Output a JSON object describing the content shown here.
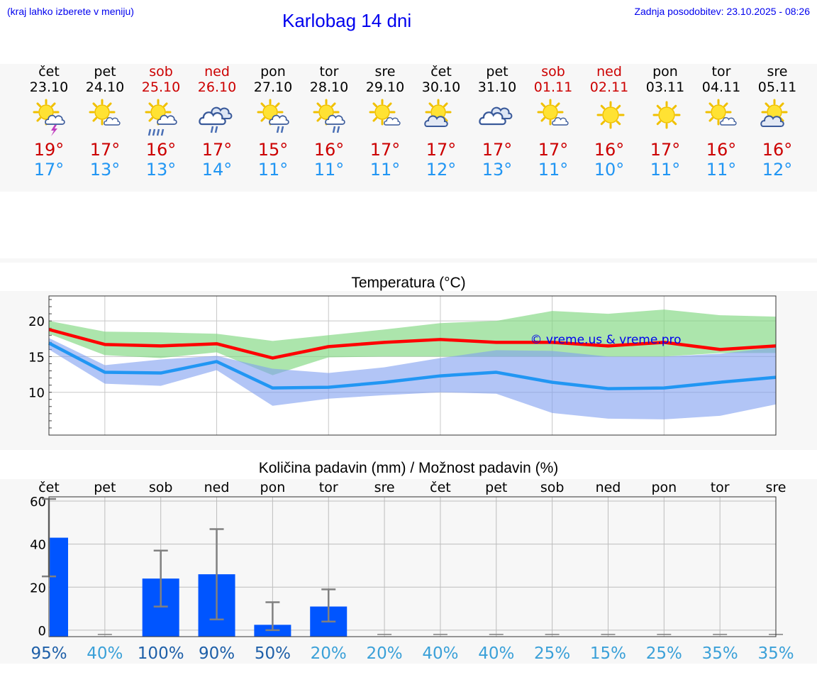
{
  "header": {
    "menu_hint": "(kraj lahko izberete v meniju)",
    "title": "Karlobag 14 dni",
    "last_update": "Zadnja posodobitev: 23.10.2025 - 08:26"
  },
  "colors": {
    "weekday": "#000000",
    "weekend": "#cc0000",
    "max_temp": "#cc0000",
    "min_temp": "#2196f3",
    "link": "#0000ee",
    "precip_bar": "#0055ff"
  },
  "days": [
    {
      "day": "čet",
      "date": "23.10",
      "weekend": false,
      "icon": "sun-cloud-thunder-icon",
      "max": "19°",
      "min": "17°"
    },
    {
      "day": "pet",
      "date": "24.10",
      "weekend": false,
      "icon": "sun-small-cloud-icon",
      "max": "17°",
      "min": "13°"
    },
    {
      "day": "sob",
      "date": "25.10",
      "weekend": true,
      "icon": "sun-cloud-rain-icon",
      "max": "16°",
      "min": "13°"
    },
    {
      "day": "ned",
      "date": "26.10",
      "weekend": true,
      "icon": "cloudy-rain-icon",
      "max": "17°",
      "min": "14°"
    },
    {
      "day": "pon",
      "date": "27.10",
      "weekend": false,
      "icon": "sun-cloud-light-rain-icon",
      "max": "15°",
      "min": "11°"
    },
    {
      "day": "tor",
      "date": "28.10",
      "weekend": false,
      "icon": "sun-cloud-light-rain-icon",
      "max": "16°",
      "min": "11°"
    },
    {
      "day": "sre",
      "date": "29.10",
      "weekend": false,
      "icon": "sun-small-cloud-icon",
      "max": "17°",
      "min": "11°"
    },
    {
      "day": "čet",
      "date": "30.10",
      "weekend": false,
      "icon": "sun-cloud-icon",
      "max": "17°",
      "min": "12°"
    },
    {
      "day": "pet",
      "date": "31.10",
      "weekend": false,
      "icon": "cloudy-icon",
      "max": "17°",
      "min": "13°"
    },
    {
      "day": "sob",
      "date": "01.11",
      "weekend": true,
      "icon": "sun-small-cloud-icon",
      "max": "17°",
      "min": "11°"
    },
    {
      "day": "ned",
      "date": "02.11",
      "weekend": true,
      "icon": "sun-icon",
      "max": "16°",
      "min": "10°"
    },
    {
      "day": "pon",
      "date": "03.11",
      "weekend": false,
      "icon": "sun-icon",
      "max": "17°",
      "min": "11°"
    },
    {
      "day": "tor",
      "date": "04.11",
      "weekend": false,
      "icon": "sun-small-cloud-icon",
      "max": "16°",
      "min": "11°"
    },
    {
      "day": "sre",
      "date": "05.11",
      "weekend": false,
      "icon": "sun-cloud-icon",
      "max": "16°",
      "min": "12°"
    }
  ],
  "chart_data": [
    {
      "type": "line",
      "title": "Temperatura (°C)",
      "watermark": "© vreme.us & vreme.pro",
      "x": [
        0,
        1,
        2,
        3,
        4,
        5,
        6,
        7,
        8,
        9,
        10,
        11,
        12,
        13
      ],
      "ylim": [
        4,
        23.5
      ],
      "yticks": [
        10,
        15,
        20
      ],
      "grid": true,
      "series": [
        {
          "name": "max",
          "color": "#ff0000",
          "values": [
            18.8,
            16.7,
            16.5,
            16.8,
            14.8,
            16.4,
            17.0,
            17.4,
            17.0,
            17.0,
            16.5,
            17.0,
            16.0,
            16.5
          ]
        },
        {
          "name": "min",
          "color": "#2196f3",
          "values": [
            16.9,
            12.8,
            12.7,
            14.3,
            10.6,
            10.7,
            11.4,
            12.3,
            12.8,
            11.4,
            10.5,
            10.6,
            11.4,
            12.1
          ]
        }
      ],
      "bands": [
        {
          "name": "max range",
          "color": "#7fd77f",
          "lower": [
            18.2,
            15.2,
            14.8,
            15.6,
            12.4,
            14.9,
            15.0,
            15.0,
            15.0,
            15.0,
            15.0,
            15.0,
            15.5,
            15.5
          ],
          "upper": [
            20.0,
            18.5,
            18.4,
            18.2,
            17.2,
            18.0,
            18.8,
            19.7,
            20.0,
            21.4,
            21.0,
            21.6,
            20.8,
            20.6
          ]
        },
        {
          "name": "min range",
          "color": "#7f9ff0",
          "lower": [
            16.0,
            11.2,
            10.9,
            13.1,
            8.1,
            9.1,
            9.6,
            10.0,
            9.8,
            7.1,
            6.3,
            6.2,
            6.7,
            8.3
          ],
          "upper": [
            17.6,
            13.8,
            14.6,
            15.1,
            13.3,
            12.7,
            13.5,
            14.8,
            15.9,
            15.8,
            15.0,
            15.0,
            15.4,
            16.3
          ]
        }
      ]
    },
    {
      "type": "bar",
      "title": "Količina padavin (mm) / Možnost padavin (%)",
      "categories": [
        "čet",
        "pet",
        "sob",
        "ned",
        "pon",
        "tor",
        "sre",
        "čet",
        "pet",
        "sob",
        "ned",
        "pon",
        "tor",
        "sre"
      ],
      "weekend_days": [
        "sob",
        "ned"
      ],
      "values": [
        43.0,
        0,
        24.0,
        26.0,
        2.5,
        11.0,
        0,
        0,
        0,
        0,
        0,
        0,
        0,
        0
      ],
      "error_low": [
        25.0,
        0,
        11.0,
        5.0,
        0,
        4.0,
        0,
        0,
        0,
        0,
        0,
        0,
        0,
        0
      ],
      "error_high": [
        61.0,
        0,
        37.0,
        47.0,
        13.0,
        19.0,
        0,
        0,
        0,
        0,
        0,
        0,
        0,
        0
      ],
      "probability": [
        "95%",
        "40%",
        "100%",
        "90%",
        "50%",
        "20%",
        "20%",
        "40%",
        "40%",
        "25%",
        "15%",
        "25%",
        "35%",
        "35%"
      ],
      "ylim": [
        -3,
        62
      ],
      "yticks": [
        0,
        20,
        40,
        60
      ],
      "grid": true
    }
  ]
}
